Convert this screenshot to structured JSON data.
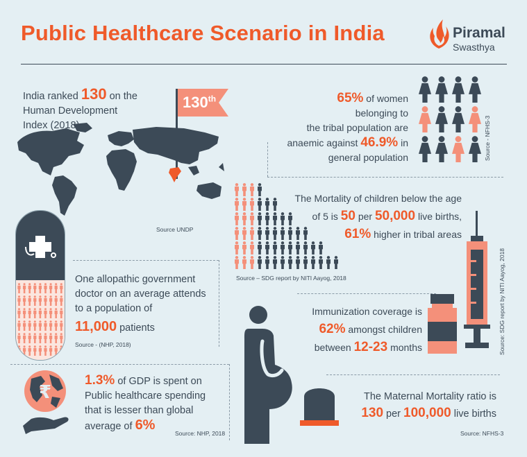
{
  "title": "Public Healthcare Scenario in India",
  "logo": {
    "brand": "Piramal",
    "sub": "Swasthya"
  },
  "hdi": {
    "pre": "India ranked ",
    "num": "130",
    "post": " on the",
    "line2": "Human Development",
    "line3": "Index (2018)",
    "flag": "130",
    "flag_sup": "th",
    "source": "Source UNDP"
  },
  "anaemia": {
    "pct1": "65%",
    "l1": " of women",
    "l2": "belonging to",
    "l3": "the tribal population are",
    "l4_pre": "anaemic against ",
    "pct2": "46.9%",
    "l4_post": " in",
    "l5": "general population",
    "source": "Source - NFHS-3"
  },
  "mortality": {
    "l1": "The Mortality of children below the age",
    "l2_pre": "of 5 is ",
    "n1": "50",
    "l2_mid": " per ",
    "n2": "50,000",
    "l2_post": " live births,",
    "pct": "61%",
    "l3_post": " higher in tribal areas",
    "source": "Source – SDG report by NITI Aayog, 2018"
  },
  "doctor": {
    "l1": "One allopathic government",
    "l2": "doctor on an average  attends",
    "l3": "to a population of",
    "num": "11,000",
    "l4_post": " patients",
    "source": "Source - (NHP, 2018)"
  },
  "immunization": {
    "l1": "Immunization coverage is",
    "pct": "62%",
    "l2_post": " amongst children",
    "l3_pre": "between ",
    "range": "12-23",
    "l3_post": " months",
    "source": "Source: SDG report by NITI Aayog, 2018"
  },
  "gdp": {
    "pct": "1.3%",
    "l1_post": " of GDP is spent on",
    "l2": "Public healthcare spending",
    "l3": "that is lesser than global",
    "l4_pre": "average of ",
    "pct2": "6%",
    "source": "Source: NHP, 2018"
  },
  "maternal": {
    "l1": "The Maternal Mortality ratio is",
    "n1": "130",
    "mid": " per ",
    "n2": "100,000",
    "post": " live births",
    "source": "Source: NFHS-3"
  },
  "colors": {
    "accent": "#ef5a2a",
    "salmon": "#f4907a",
    "dark": "#3c4a57",
    "bg": "#e4eff3"
  }
}
